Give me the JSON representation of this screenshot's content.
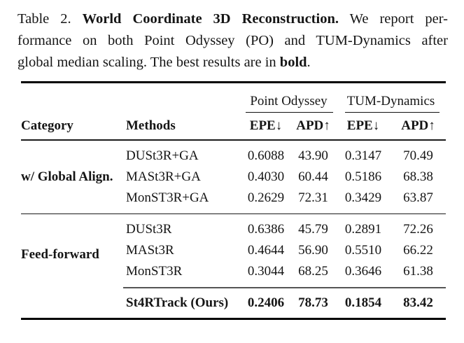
{
  "caption": {
    "label": "Table 2.",
    "title_bold": "World Coordinate 3D Reconstruction.",
    "line1_rest": "We report per-",
    "line2": "formance on both Point Odyssey (PO) and TUM-Dynamics after",
    "line3_start": "global median scaling. The best results are in",
    "line3_bold": "bold",
    "line3_end": "."
  },
  "table": {
    "group_headers": [
      "Point Odyssey",
      "TUM-Dynamics"
    ],
    "column_headers": [
      "Category",
      "Methods",
      "EPE↓",
      "APD↑",
      "EPE↓",
      "APD↑"
    ],
    "groups": [
      {
        "category": "w/ Global Align.",
        "rows": [
          {
            "method": "DUSt3R+GA",
            "values": [
              "0.6088",
              "43.90",
              "0.3147",
              "70.49"
            ]
          },
          {
            "method": "MASt3R+GA",
            "values": [
              "0.4030",
              "60.44",
              "0.5186",
              "68.38"
            ]
          },
          {
            "method": "MonST3R+GA",
            "values": [
              "0.2629",
              "72.31",
              "0.3429",
              "63.87"
            ]
          }
        ]
      },
      {
        "category": "Feed-forward",
        "rows": [
          {
            "method": "DUSt3R",
            "values": [
              "0.6386",
              "45.79",
              "0.2891",
              "72.26"
            ]
          },
          {
            "method": "MASt3R",
            "values": [
              "0.4644",
              "56.90",
              "0.5510",
              "66.22"
            ]
          },
          {
            "method": "MonST3R",
            "values": [
              "0.3044",
              "68.25",
              "0.3646",
              "61.38"
            ]
          }
        ]
      }
    ],
    "ours": {
      "method": "St4RTrack (Ours)",
      "values": [
        "0.2406",
        "78.73",
        "0.1854",
        "83.42"
      ]
    }
  },
  "colors": {
    "background": "#ffffff",
    "text": "#151515",
    "rule": "#000000",
    "light_rule": "#555555"
  }
}
